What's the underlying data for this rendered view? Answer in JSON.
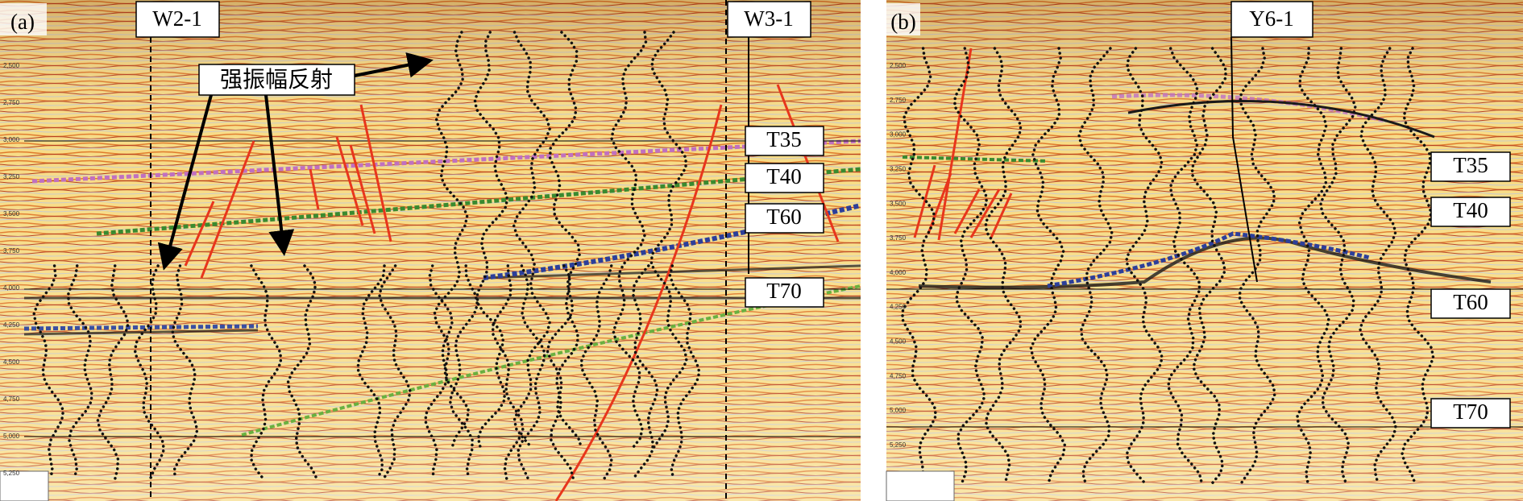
{
  "panel_a": {
    "label": "(a)",
    "wells": [
      "W2-1",
      "W3-1"
    ],
    "annotation": "强振幅反射",
    "horizons": [
      "T35",
      "T40",
      "T60",
      "T70"
    ],
    "depth_ticks": [
      "2,500",
      "2,750",
      "3,000",
      "3,250",
      "3,500",
      "3,750",
      "4,000",
      "4,250",
      "4,500",
      "4,750",
      "5,000",
      "5,250"
    ]
  },
  "panel_b": {
    "label": "(b)",
    "wells": [
      "Y6-1"
    ],
    "horizons": [
      "T35",
      "T40",
      "T60",
      "T70"
    ],
    "depth_ticks": [
      "2,500",
      "2,750",
      "3,000",
      "3,250",
      "3,500",
      "3,750",
      "4,000",
      "4,250",
      "4,500",
      "4,750",
      "5,000",
      "5,250"
    ]
  }
}
